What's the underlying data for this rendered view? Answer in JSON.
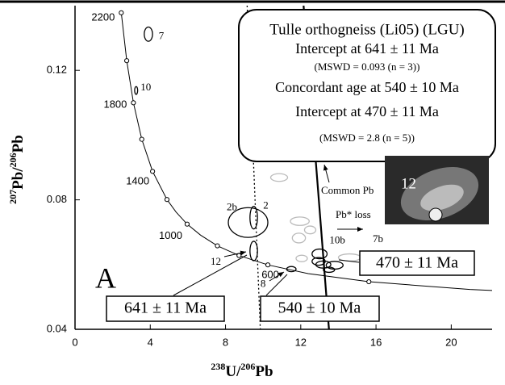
{
  "chart_data": {
    "type": "concordia",
    "xlabel": {
      "mass1": "238",
      "el1": "U/",
      "mass2": "206",
      "el2": "Pb"
    },
    "ylabel": {
      "mass1": "207",
      "el1": "Pb/",
      "mass2": "206",
      "el2": "Pb"
    },
    "xlim": [
      0,
      22
    ],
    "ylim": [
      0.04,
      0.14
    ],
    "xticks": [
      0,
      4,
      8,
      12,
      16,
      20
    ],
    "yticks": [
      0.04,
      0.08,
      0.12
    ],
    "concordia": {
      "x": [
        2.459,
        2.749,
        3.105,
        3.549,
        4.122,
        4.888,
        5.374,
        5.959,
        6.674,
        7.568,
        8.718,
        10.252,
        12.4,
        15.62,
        20.99,
        22.53
      ],
      "values": [
        0.1378,
        0.123,
        0.11,
        0.0987,
        0.0888,
        0.0801,
        0.0762,
        0.0725,
        0.0691,
        0.0658,
        0.0628,
        0.0599,
        0.0572,
        0.0547,
        0.0523,
        0.0519
      ]
    },
    "concordia_points": {
      "x": [
        2.459,
        2.749,
        3.105,
        3.549,
        4.122,
        4.888,
        5.959,
        7.568,
        8.718,
        10.252,
        15.62
      ],
      "values": [
        0.1378,
        0.123,
        0.11,
        0.0987,
        0.0888,
        0.0801,
        0.0725,
        0.0658,
        0.0628,
        0.0599,
        0.0547
      ],
      "labels": [
        2200,
        null,
        1800,
        null,
        1400,
        null,
        1000,
        null,
        null,
        600,
        null
      ]
    },
    "lines": [
      {
        "style": "dotted",
        "x": [
          9.15,
          9.85
        ],
        "values": [
          0.14,
          0.04
        ]
      },
      {
        "style": "solid",
        "x": [
          12.15,
          13.5
        ],
        "values": [
          0.14,
          0.04
        ]
      }
    ],
    "ellipse_groups": [
      {
        "color": "#000",
        "items": [
          {
            "label": "7",
            "x": 3.9,
            "y": 0.1312,
            "x_err": 0.22,
            "y_err": 0.0022
          },
          {
            "label": "10",
            "x": 3.25,
            "y": 0.1138,
            "x_err": 0.08,
            "y_err": 0.0012
          },
          {
            "label": "2b",
            "x": 9.2,
            "y": 0.073,
            "x_err": 1.05,
            "y_err": 0.0046
          },
          {
            "label": "2",
            "x": 9.5,
            "y": 0.0745,
            "x_err": 0.2,
            "y_err": 0.0035
          },
          {
            "label": "12",
            "x": 9.5,
            "y": 0.0642,
            "x_err": 0.2,
            "y_err": 0.003
          },
          {
            "label": "8",
            "x": 11.5,
            "y": 0.0586,
            "x_err": 0.25,
            "y_err": 0.0008
          },
          {
            "label": "10b",
            "x": 13.0,
            "y": 0.0633,
            "x_err": 0.4,
            "y_err": 0.0015
          },
          {
            "label": null,
            "x": 12.95,
            "y": 0.061,
            "x_err": 0.35,
            "y_err": 0.0012
          },
          {
            "label": null,
            "x": 13.2,
            "y": 0.06,
            "x_err": 0.4,
            "y_err": 0.0011
          },
          {
            "label": null,
            "x": 13.8,
            "y": 0.0598,
            "x_err": 0.45,
            "y_err": 0.0012
          },
          {
            "label": null,
            "x": 13.5,
            "y": 0.0584,
            "x_err": 0.3,
            "y_err": 0.0008
          }
        ]
      },
      {
        "color": "#bbb",
        "items": [
          {
            "label": "7b",
            "x": 14.6,
            "y": 0.0622,
            "x_err": 0.6,
            "y_err": 0.0011
          },
          {
            "label": null,
            "x": 10.85,
            "y": 0.0869,
            "x_err": 0.45,
            "y_err": 0.0012
          },
          {
            "label": null,
            "x": 11.95,
            "y": 0.0734,
            "x_err": 0.5,
            "y_err": 0.0013
          },
          {
            "label": null,
            "x": 11.9,
            "y": 0.0682,
            "x_err": 0.35,
            "y_err": 0.0015
          },
          {
            "label": null,
            "x": 12.5,
            "y": 0.0707,
            "x_err": 0.3,
            "y_err": 0.0012
          },
          {
            "label": null,
            "x": 12.05,
            "y": 0.0619,
            "x_err": 0.3,
            "y_err": 0.001
          }
        ]
      }
    ],
    "legend_box": {
      "title": "Tulle orthogneiss (Li05) (LGU)",
      "line1": "Intercept at 641 ± 11 Ma",
      "line2": "(MSWD = 0.093 (n = 3))",
      "line3": "Concordant age at 540 ± 10 Ma",
      "line4": "Intercept at 470 ± 11 Ma",
      "line5": "(MSWD = 2.8 (n = 5))"
    },
    "age_boxes": [
      "641 ± 11 Ma",
      "540 ± 10 Ma",
      "470 ± 11 Ma"
    ],
    "annotations": {
      "panel": "A",
      "common_pb": "Common Pb",
      "pb_loss": "Pb* loss",
      "inset_label": "12"
    }
  }
}
